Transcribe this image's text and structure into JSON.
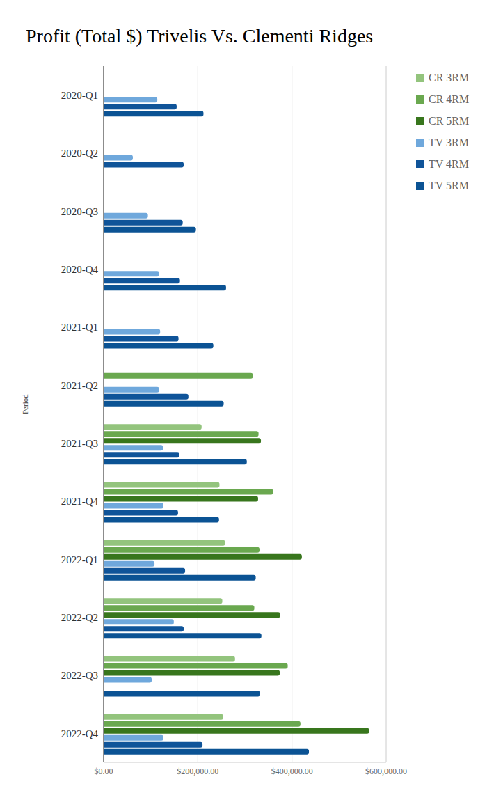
{
  "chart_data": {
    "type": "bar",
    "orientation": "horizontal",
    "title": "Profit (Total $) Trivelis Vs. Clementi Ridges",
    "y_label": "Period",
    "categories": [
      "2020-Q1",
      "2020-Q2",
      "2020-Q3",
      "2020-Q4",
      "2021-Q1",
      "2021-Q2",
      "2021-Q3",
      "2021-Q4",
      "2022-Q1",
      "2022-Q2",
      "2022-Q3",
      "2022-Q4"
    ],
    "series": [
      {
        "name": "CR 3RM",
        "color": "#93c47d",
        "values": [
          null,
          null,
          null,
          null,
          null,
          null,
          208000,
          246000,
          258000,
          252000,
          279000,
          254000
        ]
      },
      {
        "name": "CR 4RM",
        "color": "#6aa84f",
        "values": [
          null,
          null,
          null,
          null,
          null,
          317000,
          329000,
          360000,
          331000,
          320000,
          391000,
          418000
        ]
      },
      {
        "name": "CR 5RM",
        "color": "#38761d",
        "values": [
          null,
          null,
          null,
          null,
          null,
          null,
          334000,
          328000,
          421000,
          375000,
          374000,
          564000
        ]
      },
      {
        "name": "TV 3RM",
        "color": "#6fa8dc",
        "values": [
          114000,
          62000,
          94000,
          118000,
          120000,
          118000,
          126000,
          127000,
          108000,
          149000,
          102000,
          127000
        ]
      },
      {
        "name": "TV 4RM",
        "color": "#0f5499",
        "values": [
          155000,
          170000,
          168000,
          162000,
          159000,
          180000,
          161000,
          158000,
          173000,
          170000,
          null,
          210000
        ]
      },
      {
        "name": "TV 5RM",
        "color": "#0b5394",
        "values": [
          212000,
          null,
          196000,
          260000,
          233000,
          255000,
          304000,
          245000,
          323000,
          335000,
          332000,
          436000
        ]
      }
    ],
    "xlim": [
      0,
      600000
    ],
    "xticks": [
      {
        "value": 0,
        "label": "$0.00"
      },
      {
        "value": 200000,
        "label": "$200,000.00"
      },
      {
        "value": 400000,
        "label": "$400,000.00"
      },
      {
        "value": 600000,
        "label": "$600,000.00"
      }
    ],
    "grid": true,
    "legend": "right"
  }
}
